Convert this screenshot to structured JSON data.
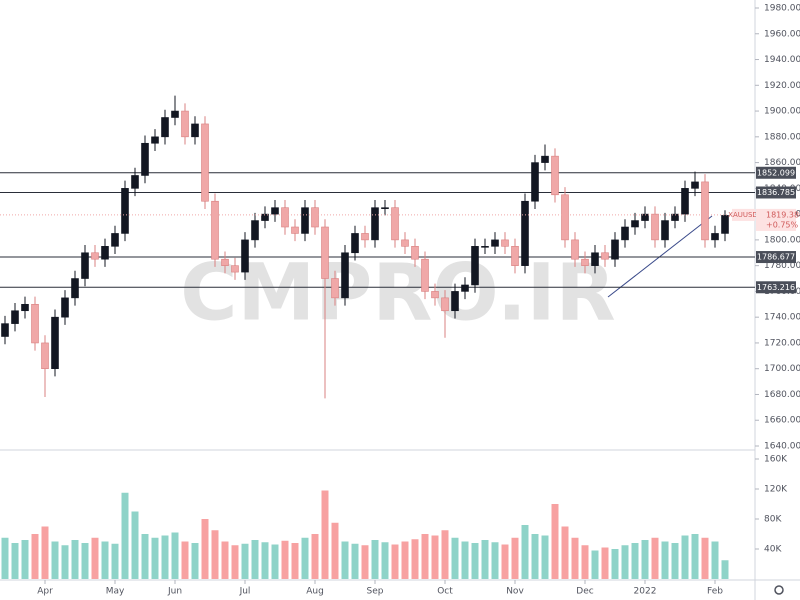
{
  "chart_data": {
    "type": "candlestick",
    "symbol": "XAUUSD",
    "watermark": "CMPRO.IR",
    "last_price": {
      "value": 1819.38,
      "label": "1819.380"
    },
    "change_label": "+0.75%",
    "ylim": [
      1640,
      1980
    ],
    "yticks": [
      {
        "value": 1640,
        "label": "1640.000"
      },
      {
        "value": 1660,
        "label": "1660.000"
      },
      {
        "value": 1680,
        "label": "1680.000"
      },
      {
        "value": 1700,
        "label": "1700.000"
      },
      {
        "value": 1720,
        "label": "1720.000"
      },
      {
        "value": 1740,
        "label": "1740.000"
      },
      {
        "value": 1760,
        "label": "1760.000"
      },
      {
        "value": 1780,
        "label": "1780.000"
      },
      {
        "value": 1800,
        "label": "1800.000"
      },
      {
        "value": 1820,
        "label": "1820.000"
      },
      {
        "value": 1840,
        "label": "1840.000"
      },
      {
        "value": 1860,
        "label": "1860.000"
      },
      {
        "value": 1880,
        "label": "1880.000"
      },
      {
        "value": 1900,
        "label": "1900.000"
      },
      {
        "value": 1920,
        "label": "1920.000"
      },
      {
        "value": 1940,
        "label": "1940.000"
      },
      {
        "value": 1960,
        "label": "1960.000"
      },
      {
        "value": 1980,
        "label": "1980.000"
      }
    ],
    "levels": [
      1852.099,
      1836.785,
      1786.677,
      1763.216
    ],
    "vlim": [
      0,
      160000
    ],
    "vticks": [
      {
        "value": 40000,
        "label": "40K"
      },
      {
        "value": 80000,
        "label": "80K"
      },
      {
        "value": 120000,
        "label": "120K"
      },
      {
        "value": 160000,
        "label": "160K"
      }
    ],
    "xticks": [
      {
        "value": 4,
        "label": "Apr"
      },
      {
        "value": 11,
        "label": "May"
      },
      {
        "value": 17,
        "label": "Jun"
      },
      {
        "value": 24,
        "label": "Jul"
      },
      {
        "value": 31,
        "label": "Aug"
      },
      {
        "value": 37,
        "label": "Sep"
      },
      {
        "value": 44,
        "label": "Oct"
      },
      {
        "value": 51,
        "label": "Nov"
      },
      {
        "value": 58,
        "label": "Dec"
      },
      {
        "value": 64,
        "label": "2022"
      },
      {
        "value": 71,
        "label": "Feb"
      }
    ],
    "up_color": "#131722",
    "down_color": "#f0a8a8",
    "volume_up_color": "#8fd3c8",
    "volume_down_color": "#f7a1a1",
    "open": [
      1725,
      1735,
      1745,
      1750,
      1720,
      1700,
      1740,
      1755,
      1770,
      1790,
      1785,
      1795,
      1805,
      1840,
      1850,
      1875,
      1880,
      1895,
      1900,
      1880,
      1890,
      1830,
      1785,
      1780,
      1775,
      1800,
      1815,
      1820,
      1825,
      1810,
      1805,
      1825,
      1810,
      1770,
      1755,
      1790,
      1805,
      1800,
      1825,
      1825,
      1800,
      1795,
      1785,
      1760,
      1755,
      1745,
      1760,
      1765,
      1795,
      1795,
      1800,
      1795,
      1780,
      1830,
      1860,
      1865,
      1835,
      1800,
      1785,
      1780,
      1790,
      1785,
      1800,
      1810,
      1815,
      1820,
      1800,
      1815,
      1820,
      1840,
      1845,
      1800,
      1805
    ],
    "high": [
      1741,
      1751,
      1756,
      1756,
      1726,
      1746,
      1761,
      1776,
      1796,
      1796,
      1801,
      1811,
      1846,
      1856,
      1881,
      1886,
      1901,
      1912,
      1906,
      1896,
      1896,
      1836,
      1791,
      1786,
      1806,
      1821,
      1826,
      1831,
      1831,
      1816,
      1831,
      1831,
      1816,
      1776,
      1796,
      1811,
      1811,
      1831,
      1831,
      1831,
      1806,
      1801,
      1791,
      1766,
      1761,
      1766,
      1771,
      1801,
      1801,
      1806,
      1806,
      1801,
      1836,
      1866,
      1874,
      1871,
      1841,
      1806,
      1791,
      1796,
      1796,
      1806,
      1816,
      1821,
      1826,
      1826,
      1821,
      1826,
      1846,
      1853,
      1851,
      1811,
      1823
    ],
    "low": [
      1719,
      1729,
      1739,
      1714,
      1678,
      1694,
      1734,
      1749,
      1764,
      1779,
      1779,
      1789,
      1799,
      1834,
      1844,
      1869,
      1874,
      1889,
      1874,
      1874,
      1824,
      1779,
      1774,
      1769,
      1769,
      1794,
      1809,
      1814,
      1804,
      1799,
      1799,
      1804,
      1677,
      1749,
      1749,
      1784,
      1794,
      1794,
      1819,
      1794,
      1789,
      1779,
      1754,
      1749,
      1724,
      1739,
      1754,
      1759,
      1789,
      1789,
      1789,
      1774,
      1774,
      1824,
      1854,
      1829,
      1794,
      1779,
      1774,
      1774,
      1779,
      1779,
      1794,
      1804,
      1809,
      1794,
      1794,
      1809,
      1814,
      1834,
      1794,
      1794,
      1799
    ],
    "close": [
      1735,
      1745,
      1750,
      1720,
      1700,
      1740,
      1755,
      1770,
      1790,
      1785,
      1795,
      1805,
      1840,
      1850,
      1875,
      1880,
      1895,
      1900,
      1880,
      1890,
      1830,
      1785,
      1780,
      1775,
      1800,
      1815,
      1820,
      1825,
      1810,
      1805,
      1825,
      1810,
      1770,
      1755,
      1790,
      1805,
      1800,
      1825,
      1825,
      1800,
      1795,
      1785,
      1760,
      1755,
      1745,
      1760,
      1765,
      1795,
      1795,
      1800,
      1795,
      1780,
      1830,
      1860,
      1865,
      1835,
      1800,
      1785,
      1780,
      1790,
      1785,
      1800,
      1810,
      1815,
      1820,
      1800,
      1815,
      1820,
      1840,
      1845,
      1800,
      1805,
      1819
    ],
    "volume": [
      55000,
      48000,
      52000,
      60000,
      70000,
      50000,
      45000,
      52000,
      48000,
      55000,
      50000,
      47000,
      115000,
      90000,
      60000,
      55000,
      58000,
      62000,
      50000,
      48000,
      80000,
      65000,
      50000,
      45000,
      47000,
      52000,
      49000,
      46000,
      51000,
      48000,
      55000,
      60000,
      118000,
      75000,
      50000,
      47000,
      45000,
      52000,
      49000,
      46000,
      50000,
      53000,
      60000,
      58000,
      65000,
      55000,
      50000,
      48000,
      52000,
      49000,
      46000,
      55000,
      72000,
      60000,
      58000,
      100000,
      70000,
      55000,
      45000,
      38000,
      42000,
      40000,
      45000,
      48000,
      52000,
      55000,
      50000,
      48000,
      58000,
      60000,
      55000,
      50000,
      25000
    ]
  }
}
